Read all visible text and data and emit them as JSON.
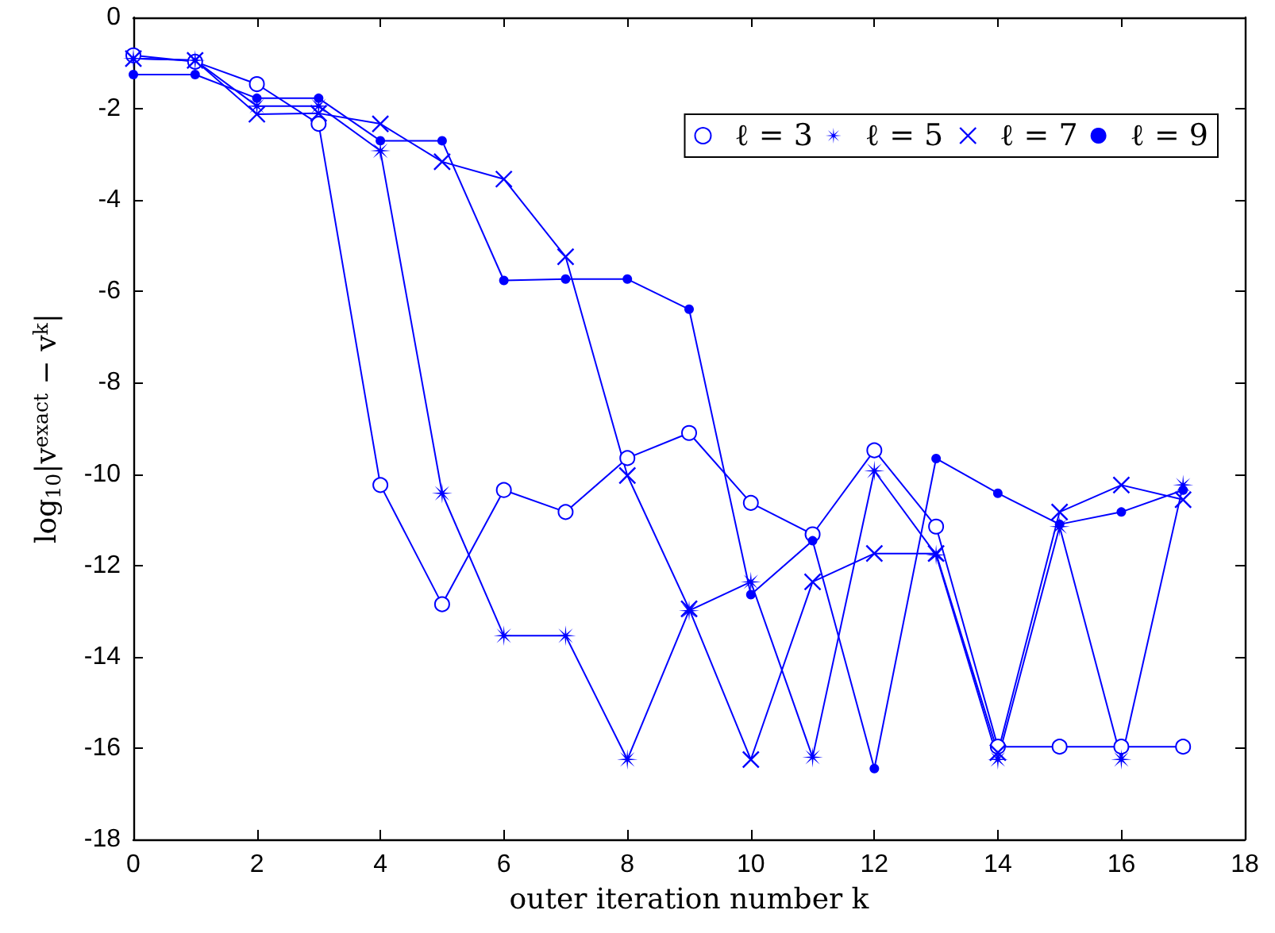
{
  "chart_data": {
    "type": "line",
    "xlabel": "outer iteration number k",
    "ylabel": "log$_{10}$|v$^{exact}$ − v$^{k}$|",
    "x": [
      0,
      1,
      2,
      3,
      4,
      5,
      6,
      7,
      8,
      9,
      10,
      11,
      12,
      13,
      14,
      15,
      16,
      17
    ],
    "xlim": [
      0,
      18
    ],
    "xticks": [
      0,
      2,
      4,
      6,
      8,
      10,
      12,
      14,
      16,
      18
    ],
    "ylim": [
      -18,
      0
    ],
    "yticks": [
      -18,
      -16,
      -14,
      -12,
      -10,
      -8,
      -6,
      -4,
      -2,
      0
    ],
    "grid": false,
    "legend": "top right",
    "line_style": "solid",
    "series": [
      {
        "name": "ℓ = 3",
        "color": "#0000ff",
        "marker": "circle",
        "values": [
          -0.83,
          -0.97,
          -1.46,
          -2.33,
          -10.24,
          -12.85,
          -10.35,
          -10.83,
          -9.65,
          -9.1,
          -10.63,
          -11.32,
          -9.48,
          -11.15,
          -15.97,
          -15.97,
          -15.97,
          -15.97
        ]
      },
      {
        "name": "ℓ = 5",
        "color": "#0000ff",
        "marker": "star",
        "values": [
          -0.9,
          -0.94,
          -1.94,
          -1.94,
          -2.92,
          -10.42,
          -13.54,
          -13.54,
          -16.25,
          -12.99,
          -12.36,
          -16.2,
          -9.93,
          -11.77,
          -16.25,
          -11.15,
          -16.25,
          -10.24
        ]
      },
      {
        "name": "ℓ = 7",
        "color": "#0000ff",
        "marker": "cross",
        "values": [
          -0.9,
          -0.94,
          -2.12,
          -2.1,
          -2.33,
          -3.16,
          -3.54,
          -5.24,
          -10.03,
          -12.95,
          -16.25,
          -12.36,
          -11.74,
          -11.74,
          -16.1,
          -10.83,
          -10.24,
          -10.56
        ]
      },
      {
        "name": "ℓ = 9",
        "color": "#0000ff",
        "marker": "dot",
        "values": [
          -1.25,
          -1.25,
          -1.77,
          -1.77,
          -2.7,
          -2.7,
          -5.76,
          -5.73,
          -5.73,
          -6.39,
          -12.64,
          -11.46,
          -16.45,
          -9.66,
          -10.42,
          -11.1,
          -10.83,
          -10.35
        ]
      }
    ]
  }
}
